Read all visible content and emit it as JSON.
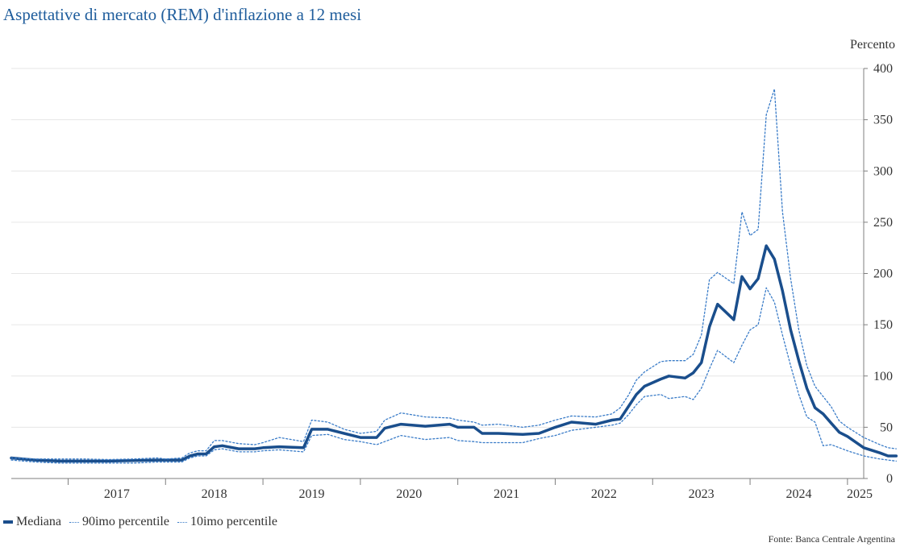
{
  "title": "Aspettative di mercato (REM) d'inflazione a 12 mesi",
  "unit_label": "Percento",
  "source": "Fonte: Banca Centrale Argentina",
  "colors": {
    "title": "#1f5d9c",
    "median": "#1a4e8c",
    "percentile": "#3a7cc8",
    "grid": "#e6e6e6",
    "axis": "#7f7f7f"
  },
  "legend": [
    {
      "label": "Mediana",
      "style": "solid"
    },
    {
      "label": "90imo percentile",
      "style": "dotted"
    },
    {
      "label": "10imo percentile",
      "style": "dotted"
    }
  ],
  "chart_data": {
    "type": "line",
    "title": "Aspettative di mercato (REM) d'inflazione a 12 mesi",
    "ylabel": "Percento",
    "y_axis_position": "right",
    "ylim": [
      0,
      400
    ],
    "yticks": [
      0,
      50,
      100,
      150,
      200,
      250,
      300,
      350,
      400
    ],
    "x_range": [
      "2016-06",
      "2025-03"
    ],
    "x_tick_labels": [
      "2017",
      "2018",
      "2019",
      "2020",
      "2021",
      "2022",
      "2023",
      "2024",
      "2025"
    ],
    "grid": "horizontal",
    "legend_position": "bottom-left",
    "series": [
      {
        "name": "Mediana",
        "style": "solid",
        "points": [
          [
            "2016-06",
            20
          ],
          [
            "2016-09",
            18
          ],
          [
            "2016-12",
            17
          ],
          [
            "2017-03",
            17
          ],
          [
            "2017-06",
            17
          ],
          [
            "2017-09",
            17.5
          ],
          [
            "2017-12",
            18
          ],
          [
            "2018-01",
            18
          ],
          [
            "2018-03",
            18
          ],
          [
            "2018-04",
            22
          ],
          [
            "2018-05",
            24
          ],
          [
            "2018-06",
            24
          ],
          [
            "2018-07",
            31
          ],
          [
            "2018-08",
            32
          ],
          [
            "2018-10",
            29
          ],
          [
            "2018-12",
            29
          ],
          [
            "2019-01",
            30
          ],
          [
            "2019-03",
            31
          ],
          [
            "2019-06",
            30
          ],
          [
            "2019-07",
            48
          ],
          [
            "2019-09",
            48
          ],
          [
            "2019-11",
            44
          ],
          [
            "2020-01",
            40
          ],
          [
            "2020-03",
            40
          ],
          [
            "2020-04",
            49
          ],
          [
            "2020-06",
            53
          ],
          [
            "2020-09",
            51
          ],
          [
            "2020-12",
            53
          ],
          [
            "2021-01",
            50
          ],
          [
            "2021-03",
            50
          ],
          [
            "2021-04",
            44
          ],
          [
            "2021-06",
            44
          ],
          [
            "2021-09",
            43
          ],
          [
            "2021-11",
            44
          ],
          [
            "2022-01",
            50
          ],
          [
            "2022-03",
            55
          ],
          [
            "2022-06",
            53
          ],
          [
            "2022-08",
            57
          ],
          [
            "2022-09",
            58
          ],
          [
            "2022-10",
            70
          ],
          [
            "2022-11",
            82
          ],
          [
            "2022-12",
            90
          ],
          [
            "2023-02",
            97
          ],
          [
            "2023-03",
            100
          ],
          [
            "2023-05",
            98
          ],
          [
            "2023-06",
            103
          ],
          [
            "2023-07",
            113
          ],
          [
            "2023-08",
            148
          ],
          [
            "2023-09",
            170
          ],
          [
            "2023-11",
            155
          ],
          [
            "2023-12",
            197
          ],
          [
            "2024-01",
            185
          ],
          [
            "2024-02",
            195
          ],
          [
            "2024-03",
            227
          ],
          [
            "2024-04",
            214
          ],
          [
            "2024-05",
            183
          ],
          [
            "2024-06",
            145
          ],
          [
            "2024-07",
            115
          ],
          [
            "2024-08",
            88
          ],
          [
            "2024-09",
            69
          ],
          [
            "2024-10",
            63
          ],
          [
            "2024-11",
            54
          ],
          [
            "2024-12",
            45
          ],
          [
            "2025-01",
            41
          ],
          [
            "2025-03",
            30
          ],
          [
            "2025-05",
            25
          ],
          [
            "2025-06",
            22
          ],
          [
            "2025-07",
            22
          ]
        ]
      },
      {
        "name": "90imo percentile",
        "style": "dotted",
        "points": [
          [
            "2016-06",
            20
          ],
          [
            "2016-09",
            19
          ],
          [
            "2016-12",
            19
          ],
          [
            "2017-03",
            19
          ],
          [
            "2017-06",
            18.5
          ],
          [
            "2017-09",
            19
          ],
          [
            "2017-12",
            20
          ],
          [
            "2018-01",
            19
          ],
          [
            "2018-03",
            20
          ],
          [
            "2018-04",
            25
          ],
          [
            "2018-05",
            27
          ],
          [
            "2018-06",
            27
          ],
          [
            "2018-07",
            37
          ],
          [
            "2018-08",
            37
          ],
          [
            "2018-10",
            34
          ],
          [
            "2018-12",
            33
          ],
          [
            "2019-01",
            35
          ],
          [
            "2019-03",
            40
          ],
          [
            "2019-06",
            36
          ],
          [
            "2019-07",
            57
          ],
          [
            "2019-09",
            55
          ],
          [
            "2019-11",
            48
          ],
          [
            "2020-01",
            44
          ],
          [
            "2020-03",
            46
          ],
          [
            "2020-04",
            57
          ],
          [
            "2020-06",
            64
          ],
          [
            "2020-09",
            60
          ],
          [
            "2020-12",
            59
          ],
          [
            "2021-01",
            57
          ],
          [
            "2021-03",
            55
          ],
          [
            "2021-04",
            52
          ],
          [
            "2021-06",
            53
          ],
          [
            "2021-09",
            50
          ],
          [
            "2021-11",
            52
          ],
          [
            "2022-01",
            57
          ],
          [
            "2022-03",
            61
          ],
          [
            "2022-06",
            60
          ],
          [
            "2022-08",
            63
          ],
          [
            "2022-09",
            69
          ],
          [
            "2022-10",
            81
          ],
          [
            "2022-11",
            96
          ],
          [
            "2022-12",
            104
          ],
          [
            "2023-02",
            114
          ],
          [
            "2023-03",
            115
          ],
          [
            "2023-05",
            115
          ],
          [
            "2023-06",
            121
          ],
          [
            "2023-07",
            140
          ],
          [
            "2023-08",
            194
          ],
          [
            "2023-09",
            201
          ],
          [
            "2023-11",
            190
          ],
          [
            "2023-12",
            260
          ],
          [
            "2024-01",
            237
          ],
          [
            "2024-02",
            243
          ],
          [
            "2024-03",
            355
          ],
          [
            "2024-04",
            380
          ],
          [
            "2024-05",
            260
          ],
          [
            "2024-06",
            195
          ],
          [
            "2024-07",
            145
          ],
          [
            "2024-08",
            110
          ],
          [
            "2024-09",
            90
          ],
          [
            "2024-10",
            80
          ],
          [
            "2024-11",
            70
          ],
          [
            "2024-12",
            56
          ],
          [
            "2025-01",
            50
          ],
          [
            "2025-03",
            40
          ],
          [
            "2025-05",
            33
          ],
          [
            "2025-06",
            30
          ],
          [
            "2025-07",
            29
          ]
        ]
      },
      {
        "name": "10imo percentile",
        "style": "dotted",
        "points": [
          [
            "2016-06",
            18
          ],
          [
            "2016-09",
            16
          ],
          [
            "2016-12",
            15
          ],
          [
            "2017-03",
            15
          ],
          [
            "2017-06",
            15
          ],
          [
            "2017-09",
            15
          ],
          [
            "2017-12",
            16
          ],
          [
            "2018-01",
            16
          ],
          [
            "2018-03",
            16
          ],
          [
            "2018-04",
            20
          ],
          [
            "2018-05",
            22
          ],
          [
            "2018-06",
            22
          ],
          [
            "2018-07",
            28
          ],
          [
            "2018-08",
            29
          ],
          [
            "2018-10",
            26
          ],
          [
            "2018-12",
            26
          ],
          [
            "2019-01",
            27
          ],
          [
            "2019-03",
            28
          ],
          [
            "2019-06",
            26
          ],
          [
            "2019-07",
            42
          ],
          [
            "2019-09",
            43
          ],
          [
            "2019-11",
            38
          ],
          [
            "2020-01",
            36
          ],
          [
            "2020-03",
            33
          ],
          [
            "2020-04",
            36
          ],
          [
            "2020-06",
            42
          ],
          [
            "2020-09",
            38
          ],
          [
            "2020-12",
            40
          ],
          [
            "2021-01",
            37
          ],
          [
            "2021-03",
            36
          ],
          [
            "2021-04",
            35
          ],
          [
            "2021-06",
            35
          ],
          [
            "2021-09",
            35
          ],
          [
            "2021-11",
            39
          ],
          [
            "2022-01",
            42
          ],
          [
            "2022-03",
            47
          ],
          [
            "2022-06",
            50
          ],
          [
            "2022-08",
            52
          ],
          [
            "2022-09",
            54
          ],
          [
            "2022-10",
            62
          ],
          [
            "2022-11",
            72
          ],
          [
            "2022-12",
            80
          ],
          [
            "2023-02",
            82
          ],
          [
            "2023-03",
            78
          ],
          [
            "2023-05",
            80
          ],
          [
            "2023-06",
            77
          ],
          [
            "2023-07",
            88
          ],
          [
            "2023-08",
            107
          ],
          [
            "2023-09",
            125
          ],
          [
            "2023-11",
            113
          ],
          [
            "2023-12",
            130
          ],
          [
            "2024-01",
            145
          ],
          [
            "2024-02",
            150
          ],
          [
            "2024-03",
            186
          ],
          [
            "2024-04",
            172
          ],
          [
            "2024-05",
            140
          ],
          [
            "2024-06",
            110
          ],
          [
            "2024-07",
            82
          ],
          [
            "2024-08",
            60
          ],
          [
            "2024-09",
            55
          ],
          [
            "2024-10",
            32
          ],
          [
            "2024-11",
            33
          ],
          [
            "2024-12",
            30
          ],
          [
            "2025-01",
            27
          ],
          [
            "2025-03",
            22
          ],
          [
            "2025-05",
            19
          ],
          [
            "2025-06",
            18
          ],
          [
            "2025-07",
            17
          ]
        ]
      }
    ]
  }
}
